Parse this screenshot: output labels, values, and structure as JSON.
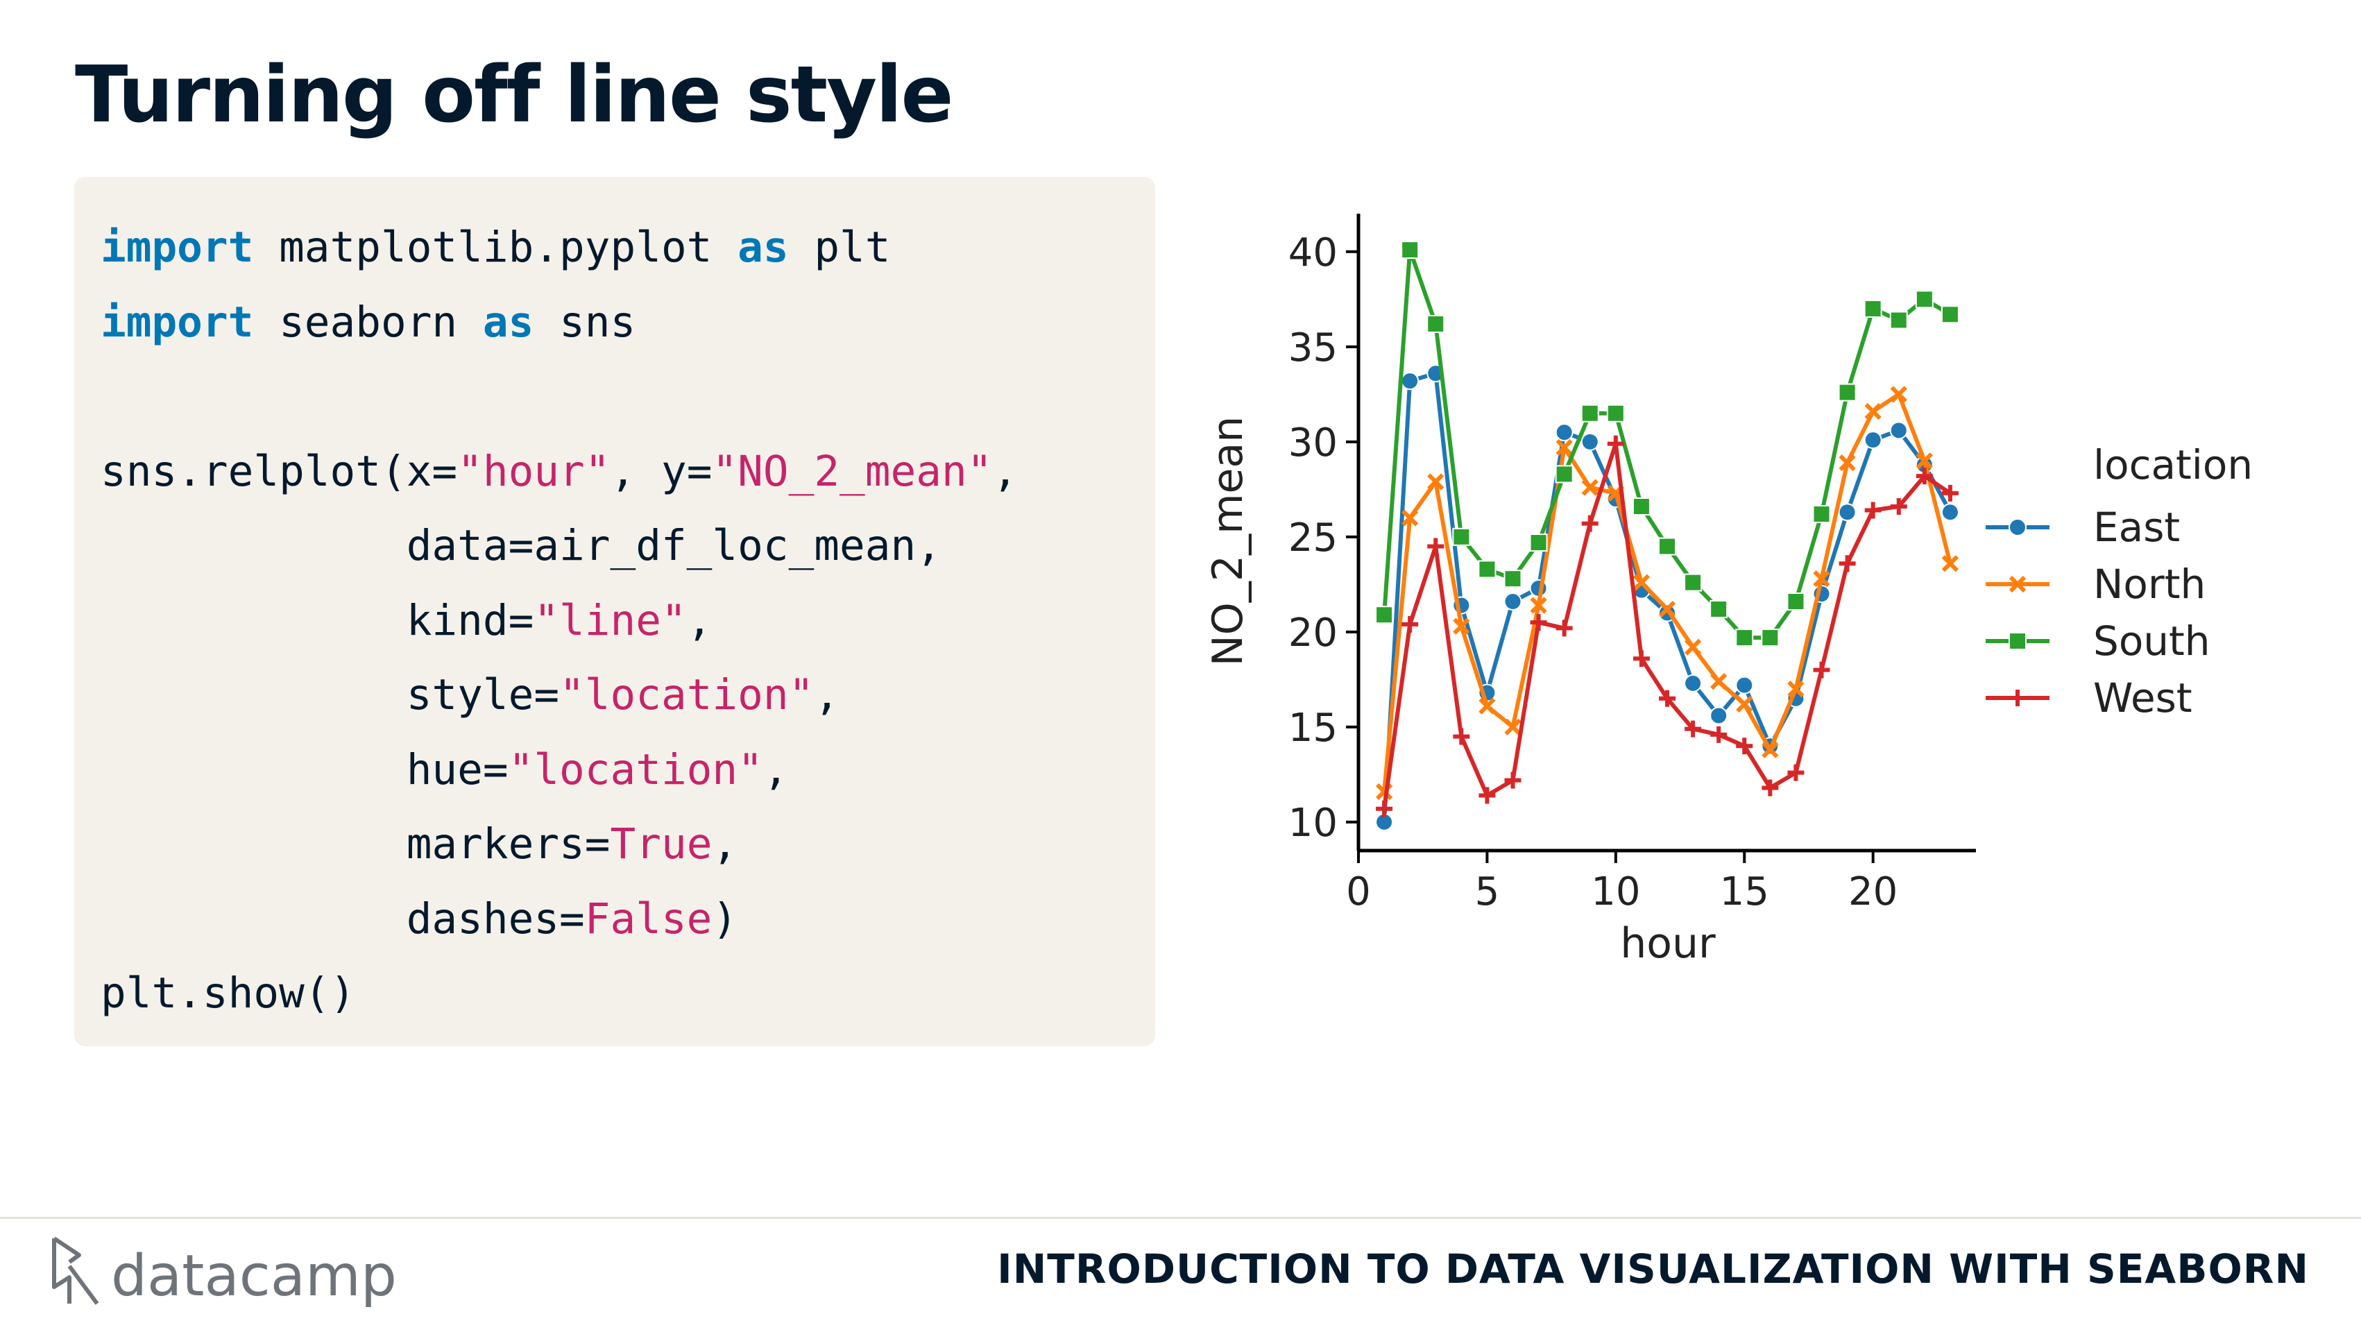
{
  "slide": {
    "title": "Turning off line style"
  },
  "code": {
    "line1": {
      "kw1": "import",
      "mid": " matplotlib.pyplot ",
      "kw2": "as",
      "end": " plt"
    },
    "line2": {
      "kw1": "import",
      "mid": " seaborn ",
      "kw2": "as",
      "end": " sns"
    },
    "line4": {
      "a": "sns.relplot(x=",
      "b": "\"hour\"",
      "c": ", y=",
      "d": "\"NO_2_mean\"",
      "e": ","
    },
    "line5": {
      "a": "            data=air_df_loc_mean,"
    },
    "line6": {
      "a": "            kind=",
      "b": "\"line\"",
      "c": ","
    },
    "line7": {
      "a": "            style=",
      "b": "\"location\"",
      "c": ","
    },
    "line8": {
      "a": "            hue=",
      "b": "\"location\"",
      "c": ","
    },
    "line9": {
      "a": "            markers=",
      "b": "True",
      "c": ","
    },
    "line10": {
      "a": "            dashes=",
      "b": "False",
      "c": ")"
    },
    "line11": {
      "a": "plt.show()"
    }
  },
  "chart_data": {
    "type": "line",
    "title": "",
    "xlabel": "hour",
    "ylabel": "NO_2_mean",
    "xlim": [
      0,
      24
    ],
    "ylim": [
      8.5,
      42
    ],
    "xticks": [
      0,
      5,
      10,
      15,
      20
    ],
    "yticks": [
      10,
      15,
      20,
      25,
      30,
      35,
      40
    ],
    "grid": false,
    "legend": {
      "title": "location",
      "placement": "right"
    },
    "x": [
      1,
      2,
      3,
      4,
      5,
      6,
      7,
      8,
      9,
      10,
      11,
      12,
      13,
      14,
      15,
      16,
      17,
      18,
      19,
      20,
      21,
      22,
      23
    ],
    "series": [
      {
        "name": "East",
        "color": "#1f77b4",
        "marker": "circle",
        "values": [
          10.0,
          33.2,
          33.6,
          21.4,
          16.8,
          21.6,
          22.3,
          30.5,
          30.0,
          27.0,
          22.2,
          21.0,
          17.3,
          15.6,
          17.2,
          14.0,
          16.5,
          22.0,
          26.3,
          30.1,
          30.6,
          28.8,
          26.3
        ]
      },
      {
        "name": "North",
        "color": "#ff7f0e",
        "marker": "x",
        "values": [
          11.6,
          26.0,
          27.9,
          20.3,
          16.1,
          15.0,
          21.4,
          29.7,
          27.6,
          27.3,
          22.6,
          21.2,
          19.2,
          17.4,
          16.2,
          13.8,
          17.0,
          22.8,
          28.9,
          31.6,
          32.5,
          29.0,
          23.6
        ]
      },
      {
        "name": "South",
        "color": "#2ca02c",
        "marker": "square",
        "values": [
          20.9,
          40.1,
          36.2,
          25.0,
          23.3,
          22.8,
          24.7,
          28.3,
          31.5,
          31.5,
          26.6,
          24.5,
          22.6,
          21.2,
          19.7,
          19.7,
          21.6,
          26.2,
          32.6,
          37.0,
          36.4,
          37.5,
          36.7
        ]
      },
      {
        "name": "West",
        "color": "#d62728",
        "marker": "plus",
        "values": [
          10.7,
          20.4,
          24.5,
          14.5,
          11.4,
          12.2,
          20.5,
          20.2,
          25.7,
          29.9,
          18.6,
          16.5,
          14.9,
          14.6,
          14.0,
          11.8,
          12.6,
          18.0,
          23.6,
          26.4,
          26.6,
          28.2,
          27.3
        ]
      }
    ]
  },
  "footer": {
    "brand": "datacamp",
    "course": "INTRODUCTION TO DATA VISUALIZATION WITH SEABORN"
  }
}
